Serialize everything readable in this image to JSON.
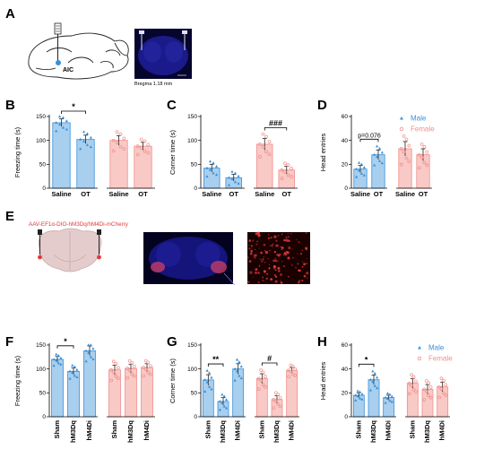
{
  "panels": {
    "A": "A",
    "B": "B",
    "C": "C",
    "D": "D",
    "E": "E",
    "F": "F",
    "G": "G",
    "H": "H"
  },
  "panelA": {
    "region_label": "AIC",
    "bregma": "Bregma 1.18 mm"
  },
  "panelE": {
    "virus_label": "AAV-EF1α-DIO-hM3Dq/hM4Di-mCherry"
  },
  "legend": {
    "male": "Male",
    "female": "Female"
  },
  "colors": {
    "male_bar": "#a9cfee",
    "male_edge": "#3a8fd9",
    "male_point": "#3a8fd9",
    "female_bar": "#f9c9c6",
    "female_edge": "#f08f8a",
    "female_point": "#f08f8a",
    "brain_bg": "#0a0a5a",
    "tissue_red": "#e03a3a"
  },
  "chart_data": [
    {
      "id": "B",
      "type": "bar",
      "ylabel": "Freezing time (s)",
      "ylim": [
        0,
        150
      ],
      "yticks": [
        0,
        50,
        100,
        150
      ],
      "categories": [
        "Saline",
        "OT",
        "Saline",
        "OT"
      ],
      "groups": [
        "male",
        "male",
        "female",
        "female"
      ],
      "values": [
        137,
        102,
        100,
        88
      ],
      "errors": [
        8,
        9,
        10,
        8
      ],
      "significance": [
        {
          "from": 0,
          "to": 1,
          "label": "*"
        }
      ]
    },
    {
      "id": "C",
      "type": "bar",
      "ylabel": "Corner time (s)",
      "ylim": [
        0,
        150
      ],
      "yticks": [
        0,
        50,
        100,
        150
      ],
      "categories": [
        "Saline",
        "OT",
        "Saline",
        "OT"
      ],
      "groups": [
        "male",
        "male",
        "female",
        "female"
      ],
      "values": [
        42,
        22,
        92,
        38
      ],
      "errors": [
        8,
        7,
        12,
        8
      ],
      "significance": [
        {
          "from": 2,
          "to": 3,
          "label": "###"
        }
      ]
    },
    {
      "id": "D",
      "type": "bar",
      "ylabel": "Head entries",
      "ylim": [
        0,
        60
      ],
      "yticks": [
        0,
        20,
        40,
        60
      ],
      "categories": [
        "Saline",
        "OT",
        "Saline",
        "OT"
      ],
      "groups": [
        "male",
        "male",
        "female",
        "female"
      ],
      "values": [
        16,
        28,
        33,
        28
      ],
      "errors": [
        3,
        4,
        6,
        5
      ],
      "significance": [
        {
          "from": 0,
          "to": 1,
          "label": "p=0.076",
          "italic_p": true
        }
      ],
      "legend": true
    },
    {
      "id": "F",
      "type": "bar",
      "ylabel": "Freezing time (s)",
      "ylim": [
        0,
        150
      ],
      "yticks": [
        0,
        50,
        100,
        150
      ],
      "categories": [
        "Sham",
        "hM3Dq",
        "hM4Di",
        "Sham",
        "hM3Dq",
        "hM4Di"
      ],
      "groups": [
        "male",
        "male",
        "male",
        "female",
        "female",
        "female"
      ],
      "values": [
        120,
        95,
        138,
        98,
        101,
        103
      ],
      "errors": [
        6,
        7,
        10,
        10,
        9,
        8
      ],
      "significance": [
        {
          "from": 0,
          "to": 1,
          "label": "*"
        }
      ]
    },
    {
      "id": "G",
      "type": "bar",
      "ylabel": "Corner time (s)",
      "ylim": [
        0,
        150
      ],
      "yticks": [
        0,
        50,
        100,
        150
      ],
      "categories": [
        "Sham",
        "hM3Dq",
        "hM4Di",
        "Sham",
        "hM3Dq",
        "hM4Di"
      ],
      "groups": [
        "male",
        "male",
        "male",
        "female",
        "female",
        "female"
      ],
      "values": [
        77,
        32,
        100,
        80,
        36,
        97
      ],
      "errors": [
        11,
        8,
        11,
        10,
        8,
        6
      ],
      "significance": [
        {
          "from": 0,
          "to": 1,
          "label": "**"
        },
        {
          "from": 3,
          "to": 4,
          "label": "#"
        }
      ]
    },
    {
      "id": "H",
      "type": "bar",
      "ylabel": "Head entries",
      "ylim": [
        0,
        60
      ],
      "yticks": [
        0,
        20,
        40,
        60
      ],
      "categories": [
        "Sham",
        "hM3Dq",
        "hM4Di",
        "Sham",
        "hM3Dq",
        "hM4Di"
      ],
      "groups": [
        "male",
        "male",
        "male",
        "female",
        "female",
        "female"
      ],
      "values": [
        18,
        31,
        16,
        28,
        23,
        25
      ],
      "errors": [
        2,
        4,
        2,
        4,
        4,
        4
      ],
      "significance": [
        {
          "from": 0,
          "to": 1,
          "label": "*"
        }
      ],
      "legend": true
    }
  ]
}
